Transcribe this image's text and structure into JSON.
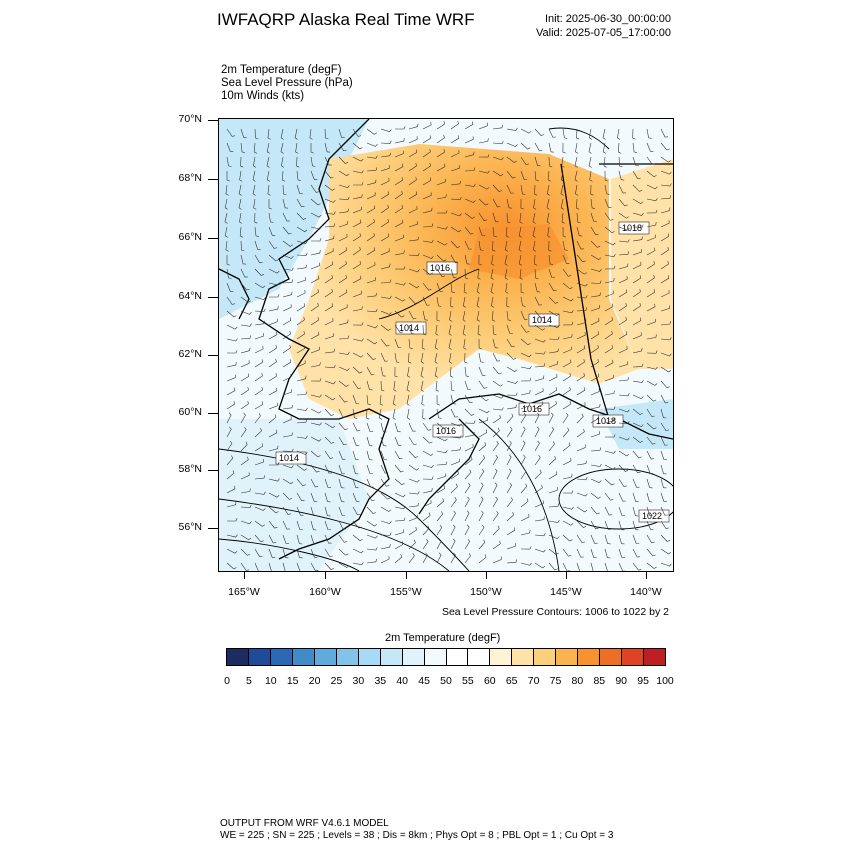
{
  "header": {
    "title": "IWFAQRP Alaska Real Time WRF",
    "init": "Init: 2025-06-30_00:00:00",
    "valid": "Valid: 2025-07-05_17:00:00"
  },
  "fields": [
    "2m Temperature   (degF)",
    "Sea Level Pressure   (hPa)",
    "10m Winds   (kts)"
  ],
  "map": {
    "lat_labels": [
      "70°N",
      "68°N",
      "66°N",
      "64°N",
      "62°N",
      "60°N",
      "58°N",
      "56°N"
    ],
    "lon_labels": [
      "165°W",
      "160°W",
      "155°W",
      "150°W",
      "145°W",
      "140°W"
    ],
    "isobar_labels": [
      "1018",
      "1016",
      "1014",
      "1014",
      "1016",
      "1016",
      "1018",
      "1014",
      "1022"
    ],
    "contour_note": "Sea Level Pressure Contours: 1006 to 1022 by 2"
  },
  "colorbar": {
    "title": "2m Temperature  (degF)",
    "labels": [
      "0",
      "5",
      "10",
      "15",
      "20",
      "25",
      "30",
      "35",
      "40",
      "45",
      "50",
      "55",
      "60",
      "65",
      "70",
      "75",
      "80",
      "85",
      "90",
      "95",
      "100"
    ],
    "colors": [
      "#1b2c62",
      "#1f4b99",
      "#2a6ab5",
      "#3f8dc8",
      "#60abdc",
      "#82c3ea",
      "#a6daf6",
      "#c5e8f8",
      "#e0f3fb",
      "#f3fafd",
      "#ffffff",
      "#ffffff",
      "#fff3d6",
      "#ffe2a8",
      "#fdcf7c",
      "#fbb34f",
      "#f7922f",
      "#ef6e26",
      "#dd4324",
      "#bf1f22",
      "#971a1e"
    ]
  },
  "footer": {
    "line1": "OUTPUT FROM WRF V4.6.1 MODEL",
    "line2": "WE = 225 ; SN = 225 ; Levels = 38 ; Dis = 8km ; Phys Opt = 8 ; PBL Opt = 1 ; Cu Opt = 3"
  }
}
